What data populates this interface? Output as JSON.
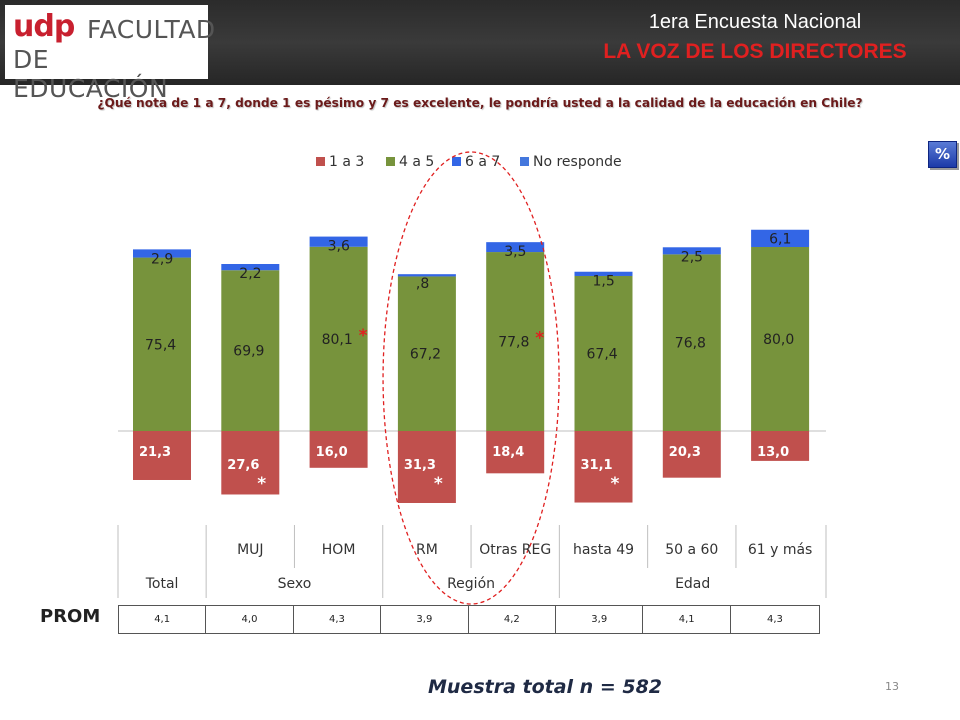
{
  "header": {
    "logo_udp": "udp",
    "logo_line1": "FACULTAD",
    "logo_line2": "DE EDUCACIÓN",
    "title": "1era Encuesta Nacional",
    "subtitle": "LA VOZ DE LOS DIRECTORES"
  },
  "question": "¿Qué nota de 1 a 7, donde 1 es pésimo y 7 es excelente, le pondría usted a la calidad de la educación en Chile?",
  "badge": "%",
  "chart_data": {
    "type": "bar",
    "stacked": true,
    "categories": [
      "Total",
      "MUJ",
      "HOM",
      "RM",
      "Otras REG",
      "hasta 49",
      "50 a 60",
      "61 y más"
    ],
    "groups": [
      {
        "label": "",
        "categories": [
          "Total"
        ]
      },
      {
        "label": "Sexo",
        "categories": [
          "MUJ",
          "HOM"
        ]
      },
      {
        "label": "Región",
        "categories": [
          "RM",
          "Otras REG"
        ]
      },
      {
        "label": "Edad",
        "categories": [
          "hasta 49",
          "50 a 60",
          "61 y más"
        ]
      }
    ],
    "bottom_labels": [
      "Total",
      "Sexo",
      "Región",
      "Edad"
    ],
    "series": [
      {
        "name": "1 a 3",
        "color": "#c0504d",
        "direction": "down",
        "values": [
          21.3,
          27.6,
          16.0,
          31.3,
          18.4,
          31.1,
          20.3,
          13.0
        ],
        "labels": [
          "21,3",
          "27,6",
          "16,0",
          "31,3",
          "18,4",
          "31,1",
          "20,3",
          "13,0"
        ]
      },
      {
        "name": "4 a 5",
        "color": "#77933c",
        "direction": "up",
        "values": [
          75.4,
          69.9,
          80.1,
          67.2,
          77.8,
          67.4,
          76.8,
          80.0
        ],
        "labels": [
          "75,4",
          "69,9",
          "80,1",
          "67,2",
          "77,8",
          "67,4",
          "76,8",
          "80,0"
        ]
      },
      {
        "name": "6 a 7",
        "color": "#3366e6",
        "direction": "up",
        "values": [
          2.9,
          2.2,
          3.6,
          0.8,
          3.5,
          1.5,
          2.5,
          6.1
        ],
        "labels": [
          "2,9",
          "2,2",
          "3,6",
          ",8",
          "3,5",
          "1,5",
          "2,5",
          "6,1"
        ]
      },
      {
        "name": "No responde",
        "color": "#4477dd",
        "direction": "up",
        "values": [
          0,
          0,
          0,
          0,
          0,
          0,
          0,
          0
        ],
        "labels": []
      }
    ],
    "significance_marks": [
      {
        "category": "HOM",
        "series": "4 a 5",
        "text": "*",
        "color": "#e02020"
      },
      {
        "category": "Otras REG",
        "series": "4 a 5",
        "text": "*",
        "color": "#e02020"
      },
      {
        "category": "MUJ",
        "series": "1 a 3",
        "text": "*",
        "color": "#ffffff"
      },
      {
        "category": "RM",
        "series": "1 a 3",
        "text": "*",
        "color": "#ffffff"
      },
      {
        "category": "hasta 49",
        "series": "1 a 3",
        "text": "*",
        "color": "#ffffff"
      }
    ],
    "highlight": {
      "categories": [
        "RM",
        "Otras REG"
      ],
      "style": "dashed ellipse",
      "color": "#e02020"
    },
    "legend_position": "top",
    "title": "",
    "xlabel": "",
    "ylabel": ""
  },
  "prom": {
    "label": "PROM",
    "values": [
      "4,1",
      "4,0",
      "4,3",
      "3,9",
      "4,2",
      "3,9",
      "4,1",
      "4,3"
    ]
  },
  "sample": "Muestra total n = 582",
  "page_number": "13"
}
